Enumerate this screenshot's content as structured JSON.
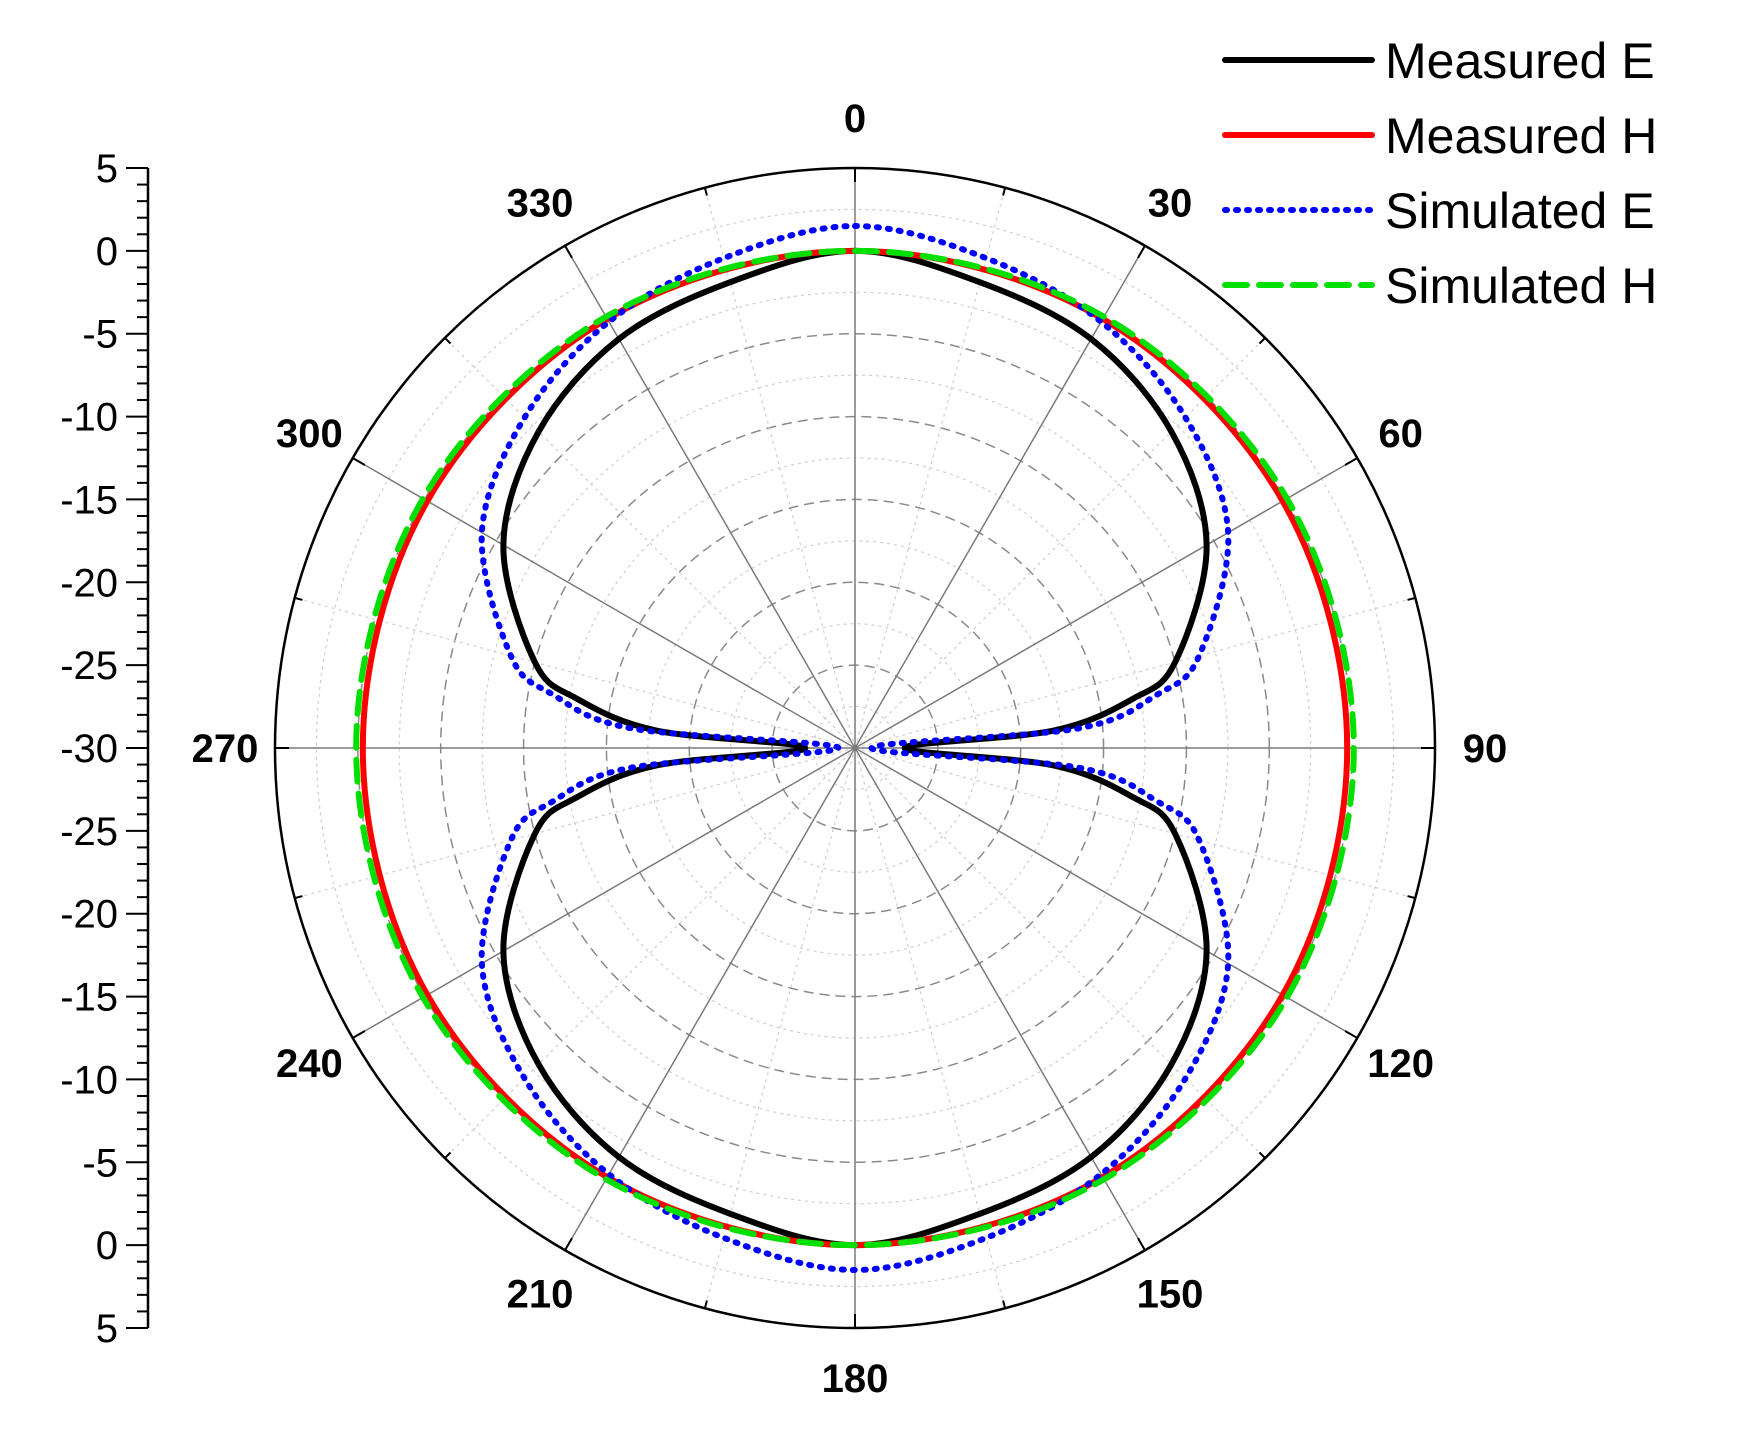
{
  "chart_data": {
    "type": "line",
    "subtype": "polar",
    "title": "",
    "angle_unit": "degrees",
    "angle_ticks": [
      "0",
      "30",
      "60",
      "90",
      "120",
      "150",
      "180",
      "210",
      "240",
      "270",
      "300",
      "330"
    ],
    "radial_axis": {
      "range": [
        -30,
        5
      ],
      "major_step": 5,
      "grid": true,
      "tick_labels": [
        "5",
        "0",
        "-5",
        "-10",
        "-15",
        "-20",
        "-25",
        "-30",
        "-25",
        "-20",
        "-15",
        "-10",
        "-5",
        "0",
        "5"
      ]
    },
    "legend": {
      "placement": "top-right"
    },
    "series": [
      {
        "name": "Measured E",
        "color": "#000000",
        "dash": "solid",
        "theta": [
          0,
          15,
          30,
          45,
          60,
          75,
          80,
          85,
          90,
          95,
          100,
          105,
          120,
          135,
          150,
          165,
          180,
          195,
          210,
          225,
          240,
          255,
          260,
          265,
          270,
          275,
          280,
          285,
          300,
          315,
          330,
          345
        ],
        "r": [
          0,
          -0.9,
          -1.5,
          -3.0,
          -5.5,
          -10.0,
          -13.0,
          -18.0,
          -27.0,
          -18.0,
          -13.0,
          -10.0,
          -5.5,
          -3.0,
          -1.5,
          -0.9,
          0,
          -0.9,
          -1.5,
          -3.0,
          -5.5,
          -10.0,
          -13.0,
          -18.0,
          -27.0,
          -18.0,
          -13.0,
          -10.0,
          -5.5,
          -3.0,
          -1.5,
          -0.9
        ]
      },
      {
        "name": "Measured H",
        "color": "#ff0000",
        "dash": "solid",
        "theta": [
          0,
          30,
          60,
          90,
          120,
          150,
          180,
          210,
          240,
          270,
          300,
          330
        ],
        "r": [
          0,
          -0.1,
          -0.2,
          -0.3,
          -0.2,
          -0.1,
          0,
          -0.1,
          -0.2,
          -0.3,
          -0.2,
          -0.1
        ]
      },
      {
        "name": "Simulated E",
        "color": "#0000ff",
        "dash": "dotted",
        "theta": [
          0,
          15,
          30,
          45,
          60,
          75,
          80,
          85,
          90,
          95,
          100,
          105,
          120,
          135,
          150,
          165,
          180,
          195,
          210,
          225,
          240,
          255,
          260,
          265,
          270,
          275,
          280,
          285,
          300,
          315,
          330,
          345
        ],
        "r": [
          1.5,
          0.6,
          -0.3,
          -1.8,
          -4.0,
          -8.5,
          -11.5,
          -16.5,
          -29.0,
          -16.5,
          -11.5,
          -8.5,
          -4.0,
          -1.8,
          -0.3,
          0.6,
          1.5,
          0.6,
          -0.3,
          -1.8,
          -4.0,
          -8.5,
          -11.5,
          -16.5,
          -29.0,
          -16.5,
          -11.5,
          -8.5,
          -4.0,
          -1.8,
          -0.3,
          0.6
        ]
      },
      {
        "name": "Simulated H",
        "color": "#00e000",
        "dash": "dashed",
        "theta": [
          0,
          30,
          60,
          90,
          120,
          150,
          180,
          210,
          240,
          270,
          300,
          330
        ],
        "r": [
          0,
          0.05,
          0.1,
          0.1,
          0.1,
          0.05,
          0,
          0.05,
          0.1,
          0.1,
          0.1,
          0.05
        ]
      }
    ]
  }
}
